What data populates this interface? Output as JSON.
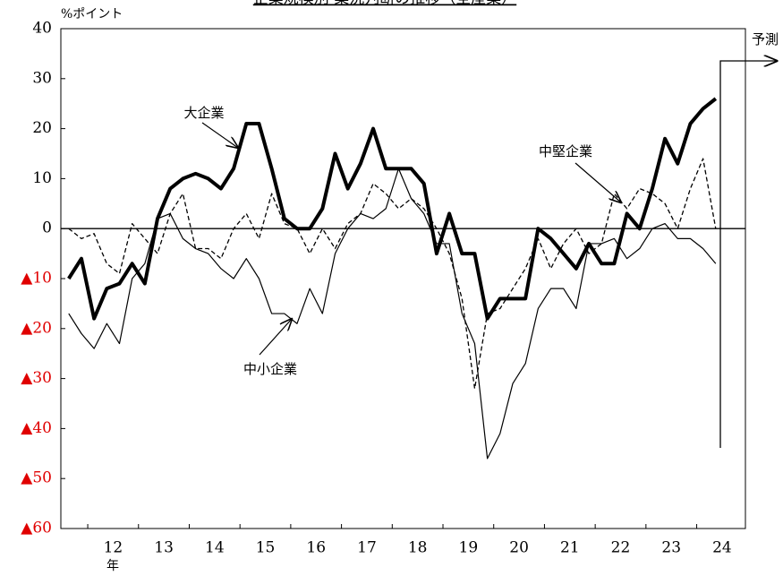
{
  "chart_data": {
    "type": "line",
    "title": "企業規模別 業況判断の推移（全産業）",
    "y_label": "%ポイント",
    "x_label": "年",
    "forecast_label": "予測",
    "annotations": [
      "大企業",
      "中堅企業",
      "中小企業"
    ],
    "x": [
      11.625,
      11.875,
      12.125,
      12.375,
      12.625,
      12.875,
      13.125,
      13.375,
      13.625,
      13.875,
      14.125,
      14.375,
      14.625,
      14.875,
      15.125,
      15.375,
      15.625,
      15.875,
      16.125,
      16.375,
      16.625,
      16.875,
      17.125,
      17.375,
      17.625,
      17.875,
      18.125,
      18.375,
      18.625,
      18.875,
      19.125,
      19.375,
      19.625,
      19.875,
      20.125,
      20.375,
      20.625,
      20.875,
      21.125,
      21.375,
      21.625,
      21.875,
      22.125,
      22.375,
      22.625,
      22.875,
      23.125,
      23.375,
      23.625,
      23.875,
      24.125,
      24.375
    ],
    "series": [
      {
        "name": "大企業",
        "color": "#000000",
        "width": 4,
        "dash": false,
        "values": [
          -10,
          -6,
          -18,
          -12,
          -11,
          -7,
          -11,
          2,
          8,
          10,
          11,
          10,
          8,
          12,
          21,
          21,
          12,
          2,
          0,
          0,
          4,
          15,
          8,
          13,
          20,
          12,
          12,
          12,
          9,
          -5,
          3,
          -5,
          -5,
          -18,
          -14,
          -14,
          -14,
          0,
          -2,
          -5,
          -8,
          -3,
          -7,
          -7,
          3,
          0,
          8,
          18,
          13,
          21,
          24,
          26
        ]
      },
      {
        "name": "中堅企業",
        "color": "#000000",
        "width": 1.3,
        "dash": true,
        "values": [
          0,
          -2,
          -1,
          -7,
          -9,
          1,
          -2,
          -5,
          3,
          7,
          -4,
          -4,
          -6,
          0,
          3,
          -2,
          7,
          1,
          0,
          -5,
          0,
          -4,
          1,
          3,
          9,
          7,
          4,
          6,
          4,
          0,
          -5,
          -14,
          -32,
          -17,
          -16,
          -12,
          -8,
          -2,
          -8,
          -3,
          0,
          -5,
          -3,
          7,
          4,
          8,
          7,
          5,
          0,
          8,
          14,
          0
        ]
      },
      {
        "name": "中小企業",
        "color": "#000000",
        "width": 1.2,
        "dash": false,
        "values": [
          -17,
          -21,
          -24,
          -19,
          -23,
          -10,
          -7,
          2,
          3,
          -2,
          -4,
          -5,
          -8,
          -10,
          -6,
          -10,
          -17,
          -17,
          -19,
          -12,
          -17,
          -5,
          0,
          3,
          2,
          4,
          12,
          6,
          3,
          -3,
          -3,
          -17,
          -23,
          -46,
          -41,
          -31,
          -27,
          -16,
          -12,
          -12,
          -16,
          -3,
          -3,
          -2,
          -6,
          -4,
          0,
          1,
          -2,
          -2,
          -4,
          -7
        ]
      }
    ],
    "xlim": [
      11.47,
      24.96
    ],
    "xticks": [
      {
        "value": 12.5,
        "label": "12"
      },
      {
        "value": 13.5,
        "label": "13"
      },
      {
        "value": 14.5,
        "label": "14"
      },
      {
        "value": 15.5,
        "label": "15"
      },
      {
        "value": 16.5,
        "label": "16"
      },
      {
        "value": 17.5,
        "label": "17"
      },
      {
        "value": 18.5,
        "label": "18"
      },
      {
        "value": 19.5,
        "label": "19"
      },
      {
        "value": 20.5,
        "label": "20"
      },
      {
        "value": 21.5,
        "label": "21"
      },
      {
        "value": 22.5,
        "label": "22"
      },
      {
        "value": 23.5,
        "label": "23"
      },
      {
        "value": 24.5,
        "label": "24"
      }
    ],
    "x_tick_marks": [
      12,
      13,
      14,
      15,
      16,
      17,
      18,
      19,
      20,
      21,
      22,
      23,
      24
    ],
    "ylim": [
      -60,
      40
    ],
    "yticks": [
      {
        "value": -60,
        "label": "▲60"
      },
      {
        "value": -50,
        "label": "▲50"
      },
      {
        "value": -40,
        "label": "▲40"
      },
      {
        "value": -30,
        "label": "▲30"
      },
      {
        "value": -20,
        "label": "▲20"
      },
      {
        "value": -10,
        "label": "▲10"
      },
      0,
      10,
      20,
      30,
      40
    ],
    "negative_label_color": "#e00000",
    "grid": false
  }
}
